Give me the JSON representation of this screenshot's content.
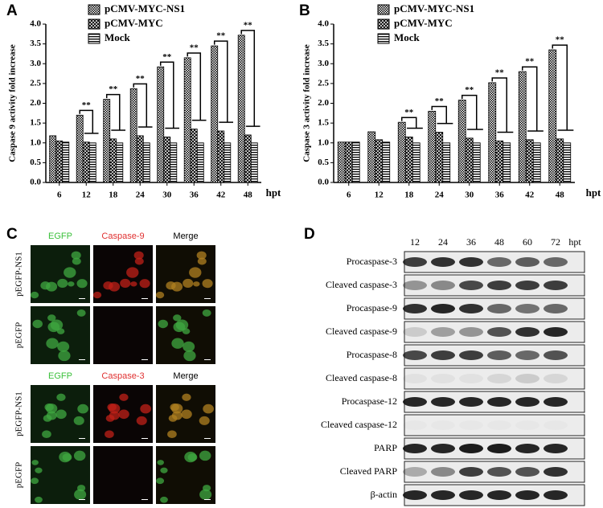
{
  "chart_data": [
    {
      "type": "bar",
      "panel": "A",
      "ylabel": "Caspase 9 activity fold increase",
      "xlabel": "hpt",
      "categories": [
        "6",
        "12",
        "18",
        "24",
        "30",
        "36",
        "42",
        "48"
      ],
      "series": [
        {
          "name": "pCMV-MYC-NS1",
          "color": "#000000",
          "hatch": "checker",
          "values": [
            1.18,
            1.7,
            2.1,
            2.37,
            2.92,
            3.15,
            3.45,
            3.72
          ]
        },
        {
          "name": "pCMV-MYC",
          "color": "#000000",
          "hatch": "cross",
          "values": [
            1.05,
            1.02,
            1.1,
            1.18,
            1.15,
            1.35,
            1.3,
            1.2
          ]
        },
        {
          "name": "Mock",
          "color": "#000000",
          "hatch": "stripes",
          "values": [
            1.02,
            1.0,
            1.0,
            1.0,
            1.0,
            1.0,
            1.0,
            1.0
          ]
        }
      ],
      "annotations": [
        {
          "x": "12",
          "text": "**"
        },
        {
          "x": "18",
          "text": "**"
        },
        {
          "x": "24",
          "text": "**"
        },
        {
          "x": "30",
          "text": "**"
        },
        {
          "x": "36",
          "text": "**"
        },
        {
          "x": "42",
          "text": "**"
        },
        {
          "x": "48",
          "text": "**"
        }
      ],
      "ylim": [
        0,
        4
      ],
      "yticks": [
        {
          "value": 0,
          "label": "0.0"
        },
        {
          "value": 0.5,
          "label": "0.5"
        },
        {
          "value": 1,
          "label": "1.0"
        },
        {
          "value": 1.5,
          "label": "1.5"
        },
        {
          "value": 2,
          "label": "2.0"
        },
        {
          "value": 2.5,
          "label": "2.5"
        },
        {
          "value": 3,
          "label": "3.0"
        },
        {
          "value": 3.5,
          "label": "3.5"
        },
        {
          "value": 4,
          "label": "4.0"
        }
      ]
    },
    {
      "type": "bar",
      "panel": "B",
      "ylabel": "Caspase 3 activity fold increase",
      "xlabel": "hpt",
      "categories": [
        "6",
        "12",
        "18",
        "24",
        "30",
        "36",
        "42",
        "48"
      ],
      "series": [
        {
          "name": "pCMV-MYC-NS1",
          "color": "#000000",
          "hatch": "checker",
          "values": [
            1.02,
            1.28,
            1.52,
            1.8,
            2.08,
            2.52,
            2.8,
            3.35
          ]
        },
        {
          "name": "pCMV-MYC",
          "color": "#000000",
          "hatch": "cross",
          "values": [
            1.02,
            1.08,
            1.15,
            1.27,
            1.12,
            1.05,
            1.08,
            1.1
          ]
        },
        {
          "name": "Mock",
          "color": "#000000",
          "hatch": "stripes",
          "values": [
            1.02,
            1.02,
            1.0,
            1.0,
            1.0,
            1.0,
            1.0,
            1.0
          ]
        }
      ],
      "annotations": [
        {
          "x": "18",
          "text": "**"
        },
        {
          "x": "24",
          "text": "**"
        },
        {
          "x": "30",
          "text": "**"
        },
        {
          "x": "36",
          "text": "**"
        },
        {
          "x": "42",
          "text": "**"
        },
        {
          "x": "48",
          "text": "**"
        }
      ],
      "ylim": [
        0,
        4
      ],
      "yticks": [
        {
          "value": 0,
          "label": "0.0"
        },
        {
          "value": 0.5,
          "label": "0.5"
        },
        {
          "value": 1,
          "label": "1.0"
        },
        {
          "value": 1.5,
          "label": "1.5"
        },
        {
          "value": 2,
          "label": "2.0"
        },
        {
          "value": 2.5,
          "label": "2.5"
        },
        {
          "value": 3,
          "label": "3.0"
        },
        {
          "value": 3.5,
          "label": "3.5"
        },
        {
          "value": 4,
          "label": "4.0"
        }
      ]
    }
  ],
  "panel_c": {
    "label": "C",
    "blocks": [
      {
        "columns": [
          "EGFP",
          "Caspase-9",
          "Merge"
        ],
        "rows": [
          "pEGFP-NS1",
          "pEGFP"
        ]
      },
      {
        "columns": [
          "EGFP",
          "Caspase-3",
          "Merge"
        ],
        "rows": [
          "pEGFP-NS1",
          "pEGFP"
        ]
      }
    ]
  },
  "panel_d": {
    "label": "D",
    "lanes": [
      "12",
      "24",
      "36",
      "48",
      "60",
      "72"
    ],
    "unit": "hpt",
    "rows": [
      "Procaspase-3",
      "Cleaved caspase-3",
      "Procaspase-9",
      "Cleaved caspase-9",
      "Procaspase-8",
      "Cleaved caspase-8",
      "Procaspase-12",
      "Cleaved caspase-12",
      "PARP",
      "Cleaved PARP",
      "β-actin"
    ]
  }
}
